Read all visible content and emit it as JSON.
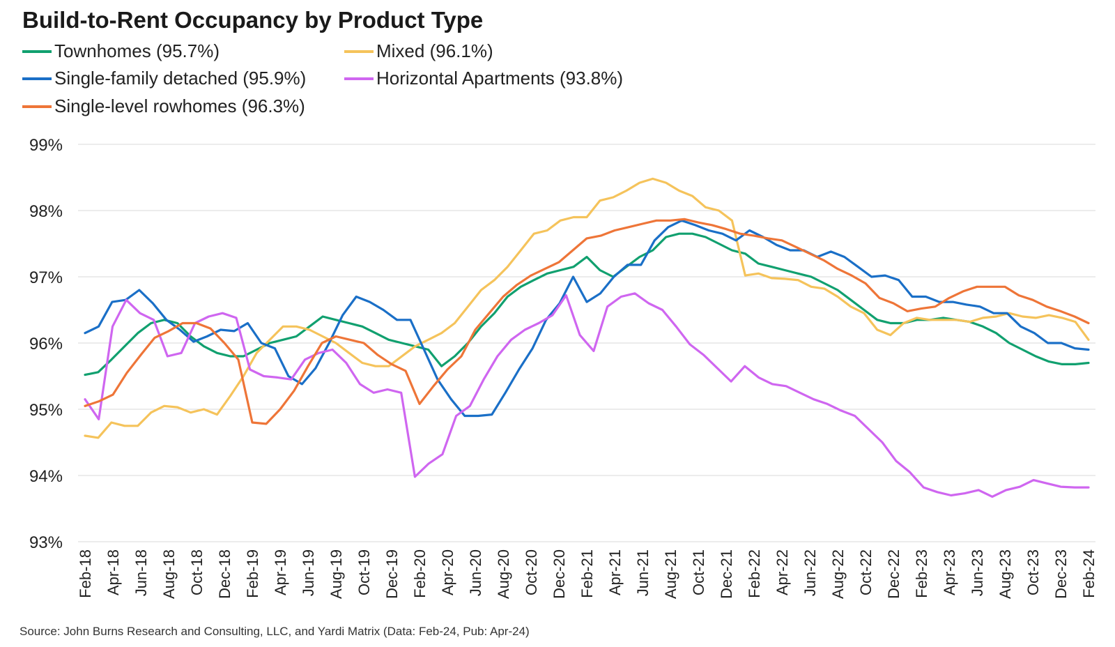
{
  "chart_data": {
    "type": "line",
    "title": "Build-to-Rent Occupancy by Product Type",
    "source": "Source: John Burns Research and Consulting, LLC, and Yardi Matrix (Data: Feb-24, Pub: Apr-24)",
    "ylim": [
      93,
      99
    ],
    "yticks": [
      99,
      98,
      97,
      96,
      95,
      94,
      93
    ],
    "ytick_labels": [
      "99%",
      "98%",
      "97%",
      "96%",
      "95%",
      "94%",
      "93%"
    ],
    "grid": true,
    "legend_position": "top-left",
    "x_labels": [
      "Feb-18",
      "Apr-18",
      "Jun-18",
      "Aug-18",
      "Oct-18",
      "Dec-18",
      "Feb-19",
      "Apr-19",
      "Jun-19",
      "Aug-19",
      "Oct-19",
      "Dec-19",
      "Feb-20",
      "Apr-20",
      "Jun-20",
      "Aug-20",
      "Oct-20",
      "Dec-20",
      "Feb-21",
      "Apr-21",
      "Jun-21",
      "Aug-21",
      "Oct-21",
      "Dec-21",
      "Feb-22",
      "Apr-22",
      "Jun-22",
      "Aug-22",
      "Oct-22",
      "Dec-22",
      "Feb-23",
      "Apr-23",
      "Jun-23",
      "Aug-23",
      "Oct-23",
      "Dec-23",
      "Feb-24"
    ],
    "series": [
      {
        "name": "Townhomes (95.7%)",
        "color": "#11a06f",
        "values": [
          95.52,
          95.56,
          95.75,
          95.95,
          96.15,
          96.3,
          96.35,
          96.3,
          96.1,
          95.95,
          95.85,
          95.8,
          95.8,
          95.9,
          96.0,
          96.05,
          96.1,
          96.25,
          96.4,
          96.35,
          96.3,
          96.25,
          96.15,
          96.05,
          96.0,
          95.95,
          95.9,
          95.65,
          95.8,
          96.0,
          96.25,
          96.45,
          96.7,
          96.85,
          96.95,
          97.05,
          97.1,
          97.15,
          97.3,
          97.1,
          97.0,
          97.15,
          97.3,
          97.4,
          97.6,
          97.65,
          97.65,
          97.6,
          97.5,
          97.4,
          97.35,
          97.2,
          97.15,
          97.1,
          97.05,
          97.0,
          96.9,
          96.8,
          96.65,
          96.5,
          96.35,
          96.3,
          96.3,
          96.35,
          96.35,
          96.38,
          96.35,
          96.32,
          96.25,
          96.15,
          96.0,
          95.9,
          95.8,
          95.72,
          95.68,
          95.68,
          95.7
        ]
      },
      {
        "name": "Mixed (96.1%)",
        "color": "#f5c35b",
        "values": [
          94.6,
          94.57,
          94.8,
          94.75,
          94.75,
          94.95,
          95.05,
          95.03,
          94.95,
          95.0,
          94.92,
          95.2,
          95.5,
          95.85,
          96.05,
          96.25,
          96.25,
          96.2,
          96.1,
          96.0,
          95.85,
          95.7,
          95.65,
          95.65,
          95.8,
          95.95,
          96.05,
          96.15,
          96.3,
          96.55,
          96.8,
          96.95,
          97.15,
          97.4,
          97.65,
          97.7,
          97.85,
          97.9,
          97.9,
          98.15,
          98.2,
          98.3,
          98.42,
          98.48,
          98.42,
          98.3,
          98.22,
          98.05,
          98.0,
          97.85,
          97.02,
          97.05,
          96.98,
          96.97,
          96.95,
          96.85,
          96.82,
          96.7,
          96.55,
          96.45,
          96.2,
          96.12,
          96.3,
          96.38,
          96.35,
          96.35,
          96.35,
          96.32,
          96.38,
          96.4,
          96.45,
          96.4,
          96.38,
          96.42,
          96.38,
          96.32,
          96.05
        ]
      },
      {
        "name": "Single-family detached (95.9%)",
        "color": "#1a6fc7",
        "values": [
          96.15,
          96.25,
          96.62,
          96.65,
          96.8,
          96.6,
          96.35,
          96.2,
          96.02,
          96.1,
          96.2,
          96.18,
          96.3,
          96.0,
          95.92,
          95.5,
          95.38,
          95.62,
          96.0,
          96.42,
          96.7,
          96.62,
          96.5,
          96.35,
          96.35,
          95.9,
          95.45,
          95.15,
          94.9,
          94.9,
          94.92,
          95.25,
          95.6,
          95.92,
          96.35,
          96.6,
          97.0,
          96.62,
          96.75,
          97.0,
          97.18,
          97.18,
          97.55,
          97.75,
          97.85,
          97.78,
          97.7,
          97.65,
          97.55,
          97.7,
          97.6,
          97.48,
          97.4,
          97.4,
          97.3,
          97.38,
          97.3,
          97.15,
          97.0,
          97.02,
          96.95,
          96.7,
          96.7,
          96.62,
          96.62,
          96.58,
          96.55,
          96.45,
          96.45,
          96.25,
          96.15,
          96.0,
          96.0,
          95.92,
          95.9
        ]
      },
      {
        "name": "Horizontal Apartments (93.8%)",
        "color": "#cf66f0",
        "values": [
          95.15,
          94.85,
          96.25,
          96.65,
          96.45,
          96.35,
          95.8,
          95.85,
          96.3,
          96.4,
          96.45,
          96.38,
          95.6,
          95.5,
          95.48,
          95.45,
          95.75,
          95.85,
          95.9,
          95.7,
          95.38,
          95.25,
          95.3,
          95.25,
          93.98,
          94.18,
          94.32,
          94.9,
          95.05,
          95.45,
          95.8,
          96.05,
          96.2,
          96.3,
          96.42,
          96.72,
          96.12,
          95.88,
          96.55,
          96.7,
          96.75,
          96.6,
          96.5,
          96.25,
          95.98,
          95.82,
          95.62,
          95.42,
          95.65,
          95.48,
          95.38,
          95.35,
          95.25,
          95.15,
          95.08,
          94.98,
          94.9,
          94.7,
          94.5,
          94.22,
          94.05,
          93.82,
          93.75,
          93.7,
          93.73,
          93.78,
          93.68,
          93.78,
          93.83,
          93.93,
          93.88,
          93.83,
          93.82,
          93.82
        ]
      },
      {
        "name": "Single-level rowhomes (96.3%)",
        "color": "#ee7538",
        "values": [
          95.05,
          95.12,
          95.22,
          95.55,
          95.82,
          96.08,
          96.18,
          96.3,
          96.3,
          96.22,
          96.0,
          95.75,
          94.8,
          94.78,
          95.0,
          95.28,
          95.65,
          96.0,
          96.1,
          96.05,
          96.0,
          95.82,
          95.68,
          95.58,
          95.08,
          95.35,
          95.6,
          95.8,
          96.2,
          96.45,
          96.7,
          96.88,
          97.02,
          97.12,
          97.22,
          97.4,
          97.58,
          97.62,
          97.7,
          97.75,
          97.8,
          97.85,
          97.85,
          97.87,
          97.82,
          97.78,
          97.72,
          97.65,
          97.62,
          97.58,
          97.55,
          97.45,
          97.35,
          97.25,
          97.12,
          97.02,
          96.9,
          96.68,
          96.6,
          96.48,
          96.52,
          96.55,
          96.68,
          96.78,
          96.85,
          96.85,
          96.85,
          96.72,
          96.65,
          96.55,
          96.48,
          96.4,
          96.3
        ]
      }
    ]
  }
}
